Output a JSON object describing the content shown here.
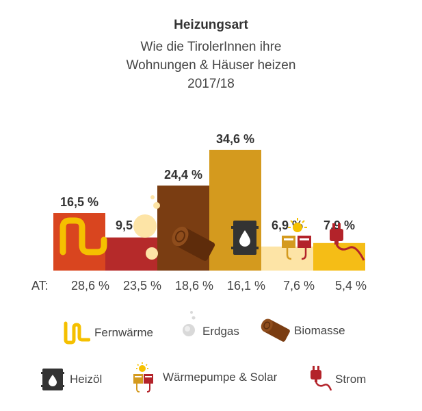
{
  "header": {
    "title": "Heizungsart",
    "subtitle_lines": [
      "Wie die TirolerInnen ihre",
      "Wohnungen & Häuser heizen",
      "2017/18"
    ]
  },
  "colors": {
    "fernwaerme": "#d9451f",
    "erdgas": "#b52a2a",
    "biomasse": "#7a3d12",
    "heizoel": "#d49a1e",
    "waermepumpe": "#fde4a6",
    "strom": "#f5bd16",
    "icon_yellow": "#f5c000",
    "icon_dark": "#333333",
    "icon_red": "#b3232a"
  },
  "chart_data": {
    "type": "bar",
    "title": "Heizungsart",
    "categories": [
      "Fernwärme",
      "Erdgas",
      "Biomasse",
      "Heizöl",
      "Wärmepumpe & Solar",
      "Strom"
    ],
    "values": [
      16.5,
      9.5,
      24.4,
      34.6,
      6.9,
      7.9
    ],
    "value_labels": [
      "16,5 %",
      "9,5 %",
      "24,4 %",
      "34,6 %",
      "6,9 %",
      "7,9 %"
    ],
    "comparison_label": "AT:",
    "comparison_values": [
      28.6,
      23.5,
      18.6,
      16.1,
      7.6,
      5.4
    ],
    "comparison_labels": [
      "28,6 %",
      "23,5 %",
      "18,6 %",
      "16,1 %",
      "7,6 %",
      "5,4 %"
    ],
    "legend_placement": "bottom",
    "grid": false
  },
  "legend": {
    "items": [
      {
        "label": "Fernwärme",
        "icon": "pipe-icon"
      },
      {
        "label": "Erdgas",
        "icon": "gas-bubbles-icon"
      },
      {
        "label": "Biomasse",
        "icon": "log-icon"
      },
      {
        "label": "Heizöl",
        "icon": "oil-barrel-icon"
      },
      {
        "label": "Wärmepumpe & Solar",
        "icon": "heat-pump-solar-icon"
      },
      {
        "label": "Strom",
        "icon": "power-plug-icon"
      }
    ]
  }
}
